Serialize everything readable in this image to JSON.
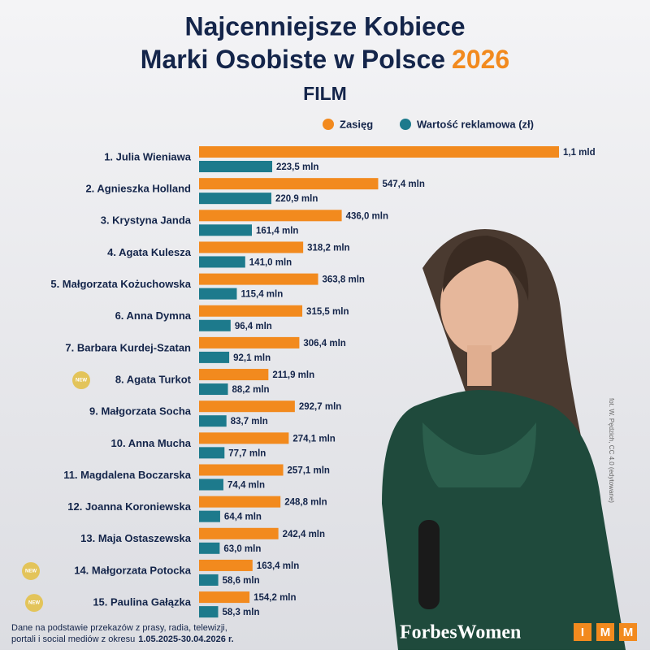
{
  "chart_data": {
    "type": "bar",
    "orientation": "horizontal",
    "title_lines": [
      "Najcenniejsze Kobiece",
      "Marki Osobiste w Polsce"
    ],
    "title_year": "2026",
    "subtitle": "FILM",
    "categories": [
      "1. Julia Wieniawa",
      "2. Agnieszka Holland",
      "3. Krystyna Janda",
      "4. Agata Kulesza",
      "5. Małgorzata Kożuchowska",
      "6. Anna Dymna",
      "7. Barbara Kurdej-Szatan",
      "8. Agata Turkot",
      "9. Małgorzata Socha",
      "10. Anna Mucha",
      "11. Magdalena Boczarska",
      "12. Joanna Koroniewska",
      "13. Maja Ostaszewska",
      "14. Małgorzata Potocka",
      "15. Paulina Gałązka"
    ],
    "badges": [
      null,
      null,
      null,
      null,
      null,
      null,
      null,
      "NEW",
      null,
      null,
      null,
      null,
      null,
      "NEW",
      "NEW"
    ],
    "series": [
      {
        "name": "Zasięg",
        "color": "#f28a1e",
        "values": [
          1100,
          547.4,
          436.0,
          318.2,
          363.8,
          315.5,
          306.4,
          211.9,
          292.7,
          274.1,
          257.1,
          248.8,
          242.4,
          163.4,
          154.2
        ],
        "value_labels": [
          "1,1 mld",
          "547,4 mln",
          "436,0 mln",
          "318,2 mln",
          "363,8 mln",
          "315,5 mln",
          "306,4 mln",
          "211,9 mln",
          "292,7 mln",
          "274,1 mln",
          "257,1 mln",
          "248,8 mln",
          "242,4 mln",
          "163,4 mln",
          "154,2 mln"
        ]
      },
      {
        "name": "Wartość reklamowa (zł)",
        "color": "#1d7a8c",
        "values": [
          223.5,
          220.9,
          161.4,
          141.0,
          115.4,
          96.4,
          92.1,
          88.2,
          83.7,
          77.7,
          74.4,
          64.4,
          63.0,
          58.6,
          58.3
        ],
        "value_labels": [
          "223,5 mln",
          "220,9 mln",
          "161,4 mln",
          "141,0 mln",
          "115,4 mln",
          "96,4 mln",
          "92,1 mln",
          "88,2 mln",
          "83,7 mln",
          "77,7 mln",
          "74,4 mln",
          "64,4 mln",
          "63,0 mln",
          "58,6 mln",
          "58,3 mln"
        ]
      }
    ],
    "footnote_lines": [
      "Dane na podstawie przekazów z prasy, radia, telewizji,",
      "portali i social mediów z okresu"
    ],
    "footnote_period": "1.05.2025-30.04.2026 r.",
    "photo_credit": "fot. W. Pędzich, CC 4.0 (edytowane)",
    "logo_forbes": "ForbesWomen",
    "logo_imm": [
      "I",
      "M",
      "M"
    ]
  }
}
